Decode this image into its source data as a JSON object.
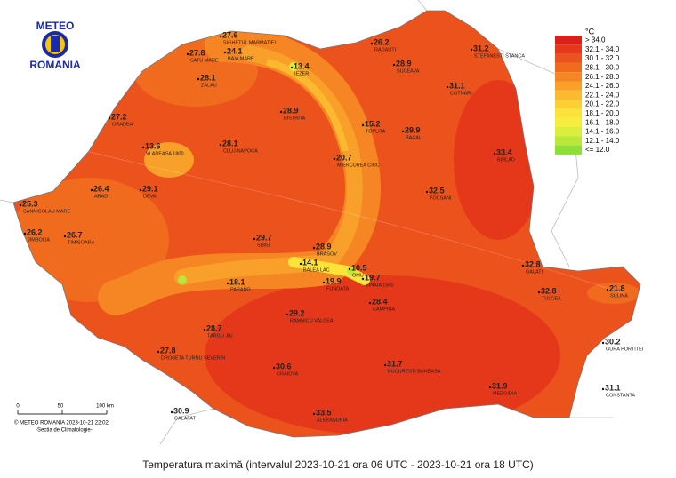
{
  "logo": {
    "top": "METEO",
    "bottom": "ROMANIA"
  },
  "title": "Temperatura maximă (intervalul 2023-10-21 ora 06 UTC - 2023-10-21 ora 18 UTC)",
  "legend": {
    "unit": "°C",
    "classes": [
      {
        "label": "> 34.0",
        "color": "#d9201a"
      },
      {
        "label": "32.1 - 34.0",
        "color": "#e5381b"
      },
      {
        "label": "30.1 - 32.0",
        "color": "#ec521c"
      },
      {
        "label": "28.1 - 30.0",
        "color": "#f16b1f"
      },
      {
        "label": "26.1 - 28.0",
        "color": "#f58623"
      },
      {
        "label": "24.1 - 26.0",
        "color": "#f8a029"
      },
      {
        "label": "22.1 - 24.0",
        "color": "#fab92f"
      },
      {
        "label": "20.1 - 22.0",
        "color": "#fccf33"
      },
      {
        "label": "18.1 - 20.0",
        "color": "#fde23a"
      },
      {
        "label": "16.1 - 18.0",
        "color": "#f6ee3d"
      },
      {
        "label": "14.1 - 16.0",
        "color": "#dcee3c"
      },
      {
        "label": "12.1 - 14.0",
        "color": "#b9e83a"
      },
      {
        "label": "<= 12.0",
        "color": "#8ede3a"
      }
    ]
  },
  "scale": {
    "ticks": [
      "0",
      "50",
      "100 km"
    ]
  },
  "credit": {
    "line1": "© METEO ROMANIA 2023-10-21 22:02",
    "line2": "-Sectia de Climatologie-"
  },
  "stations": [
    {
      "name": "SIGHETUL MARMATIEI",
      "value": 27.6
    },
    {
      "name": "BAIA MARE",
      "value": 24.1
    },
    {
      "name": "SATU MARE",
      "value": 27.8
    },
    {
      "name": "IEZER",
      "value": 13.4
    },
    {
      "name": "RADAUTI",
      "value": 26.2
    },
    {
      "name": "STEFANESTI STANCA",
      "value": 31.2
    },
    {
      "name": "SUCEAVA",
      "value": 28.9
    },
    {
      "name": "COTNARI",
      "value": 31.1
    },
    {
      "name": "ORADEA",
      "value": 27.2
    },
    {
      "name": "ZALAU",
      "value": 28.1
    },
    {
      "name": "CLUJ-NAPOCA",
      "value": 28.1
    },
    {
      "name": "BISTRITA",
      "value": 28.9
    },
    {
      "name": "VLADEASA 1800",
      "value": 13.6
    },
    {
      "name": "TOPLITA",
      "value": 15.2
    },
    {
      "name": "MIERCUREA CIUC",
      "value": 20.7
    },
    {
      "name": "BACAU",
      "value": 29.9
    },
    {
      "name": "BIRLAD",
      "value": 33.4
    },
    {
      "name": "ARAD",
      "value": 26.4
    },
    {
      "name": "SANNICOLAU MARE",
      "value": 25.3
    },
    {
      "name": "JIMBOLIA",
      "value": 26.2
    },
    {
      "name": "TIMISOARA",
      "value": 26.7
    },
    {
      "name": "DEVA",
      "value": 29.1
    },
    {
      "name": "SIBIU",
      "value": 29.7
    },
    {
      "name": "BRASOV",
      "value": 28.9
    },
    {
      "name": "BALEA LAC",
      "value": 14.1
    },
    {
      "name": "OMU",
      "value": 10.5
    },
    {
      "name": "FUNDATA",
      "value": 19.9
    },
    {
      "name": "SINAIA 1500",
      "value": 19.7
    },
    {
      "name": "PARANG",
      "value": 18.1
    },
    {
      "name": "TARGU JIU",
      "value": 28.7
    },
    {
      "name": "RAMNICU VALCEA",
      "value": 29.2
    },
    {
      "name": "CAMPINA",
      "value": 28.4
    },
    {
      "name": "FOCSANI",
      "value": 32.5
    },
    {
      "name": "GALATI",
      "value": 32.8
    },
    {
      "name": "TULCEA",
      "value": 32.8
    },
    {
      "name": "SULINA",
      "value": 21.8
    },
    {
      "name": "GURA PORTITEI",
      "value": 30.2
    },
    {
      "name": "DROBETA TURNU SEVERIN",
      "value": 27.8
    },
    {
      "name": "CRAIOVA",
      "value": 30.6
    },
    {
      "name": "CALAFAT",
      "value": 30.9
    },
    {
      "name": "BUCURESTI BANEASA",
      "value": 31.7
    },
    {
      "name": "ALEXANDRIA",
      "value": 33.5
    },
    {
      "name": "MEDGIDIA",
      "value": 31.9
    },
    {
      "name": "CONSTANTA",
      "value": 31.1
    }
  ]
}
